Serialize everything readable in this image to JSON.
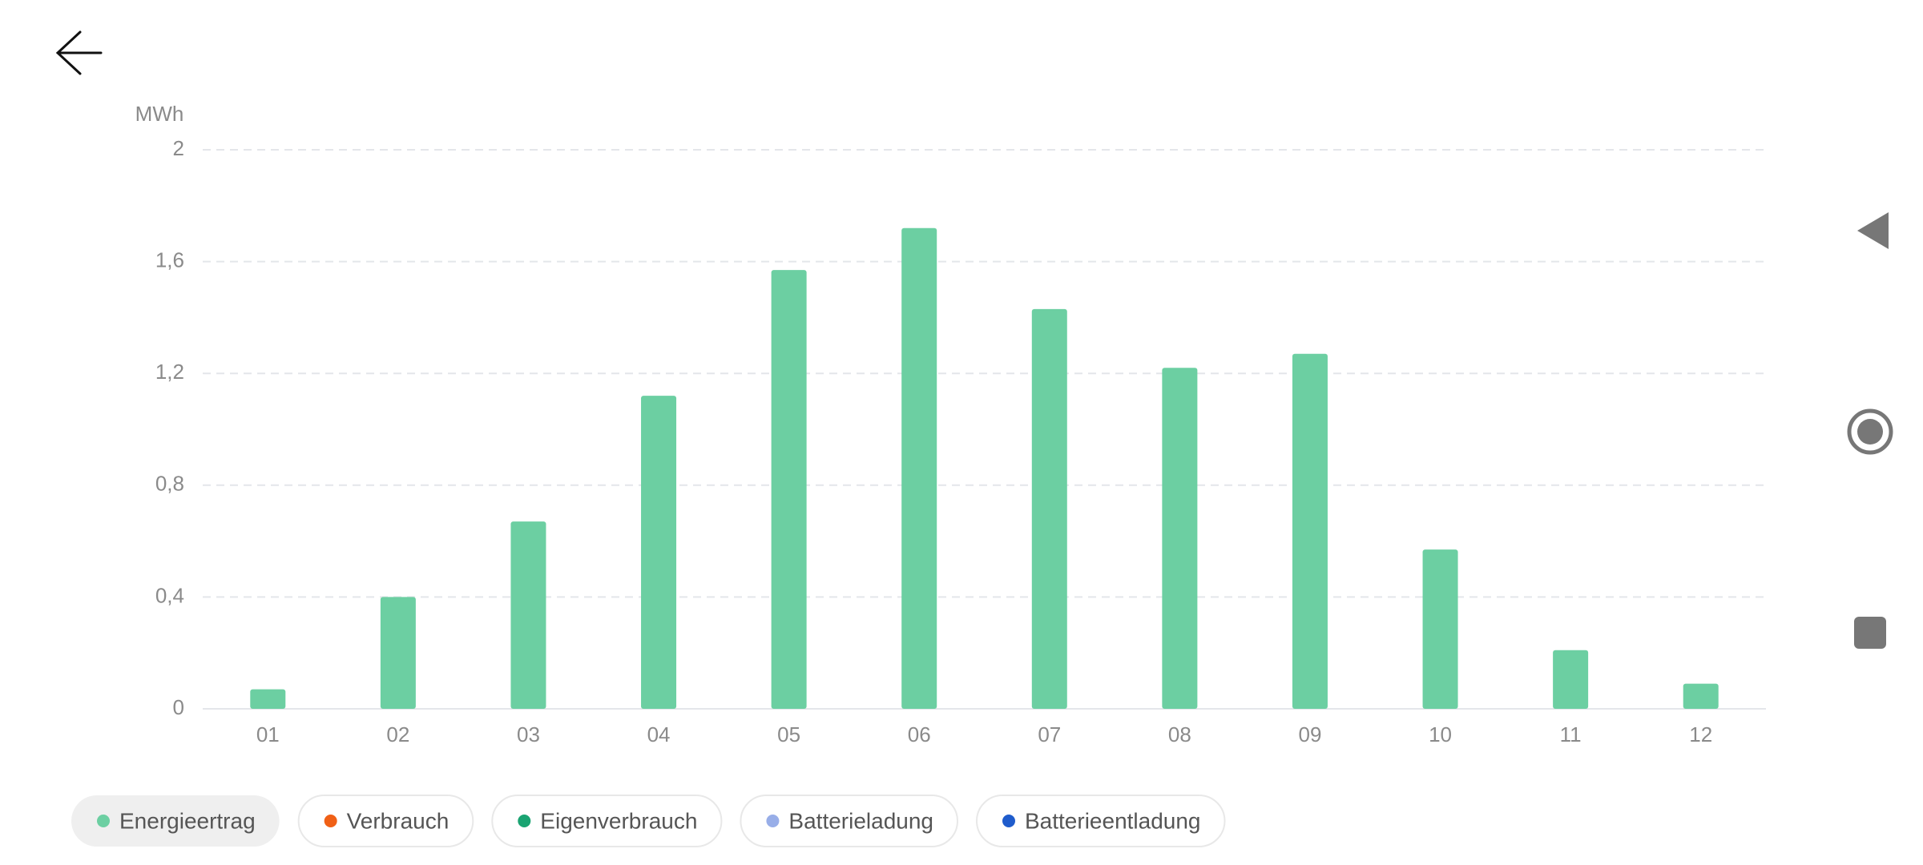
{
  "chart_data": {
    "type": "bar",
    "y_label": "MWh",
    "categories": [
      "01",
      "02",
      "03",
      "04",
      "05",
      "06",
      "07",
      "08",
      "09",
      "10",
      "11",
      "12"
    ],
    "series": [
      {
        "name": "Energieertrag",
        "color": "#6ccfa2",
        "values": [
          0.07,
          0.4,
          0.67,
          1.12,
          1.57,
          1.72,
          1.43,
          1.22,
          1.27,
          0.57,
          0.21,
          0.09
        ]
      }
    ],
    "ylim": [
      0,
      2
    ],
    "yticks": [
      0,
      {
        "value": 0.4,
        "label": "0,4"
      },
      {
        "value": 0.8,
        "label": "0,8"
      },
      {
        "value": 1.2,
        "label": "1,2"
      },
      {
        "value": 1.6,
        "label": "1,6"
      },
      2
    ],
    "grid": true,
    "legend": [
      {
        "name": "Energieertrag",
        "color": "#6ccfa2",
        "active": true
      },
      {
        "name": "Verbrauch",
        "color": "#f06016",
        "active": false
      },
      {
        "name": "Eigenverbrauch",
        "color": "#1aa472",
        "active": false
      },
      {
        "name": "Batterieladung",
        "color": "#98aee8",
        "active": false
      },
      {
        "name": "Batterieentladung",
        "color": "#1f5ccc",
        "active": false
      }
    ]
  }
}
